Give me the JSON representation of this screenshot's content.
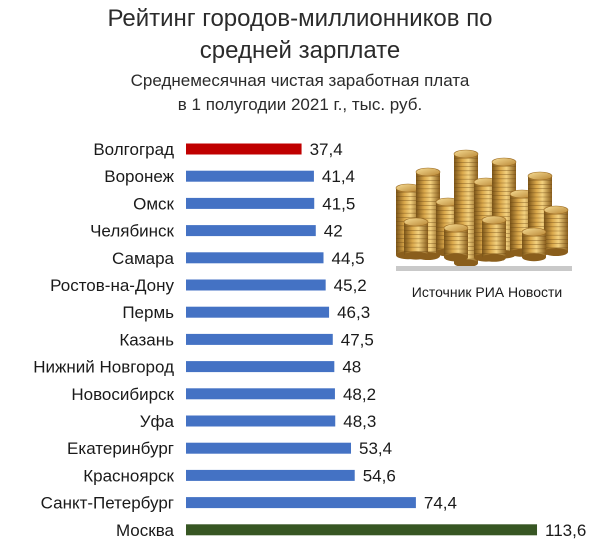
{
  "header": {
    "title_line1": "Рейтинг городов-миллионников по",
    "title_line2": "средней зарплате",
    "subtitle_line1": "Среднемесячная чистая заработная плата",
    "subtitle_line2": "в 1 полугодии 2021 г., тыс. руб."
  },
  "source": {
    "text": "Источник РИА Новости"
  },
  "colors": {
    "default_bar": "#4472c4",
    "lowest_bar": "#c00000",
    "highest_bar": "#375623"
  },
  "chart_data": {
    "type": "bar",
    "orientation": "horizontal",
    "categories": [
      "Волгоград",
      "Воронеж",
      "Омск",
      "Челябинск",
      "Самара",
      "Ростов-на-Дону",
      "Пермь",
      "Казань",
      "Нижний Новгород",
      "Новосибирск",
      "Уфа",
      "Екатеринбург",
      "Красноярск",
      "Санкт-Петербург",
      "Москва"
    ],
    "values": [
      37.4,
      41.4,
      41.5,
      42,
      44.5,
      45.2,
      46.3,
      47.5,
      48,
      48.2,
      48.3,
      53.4,
      54.6,
      74.4,
      113.6
    ],
    "value_labels": [
      "37,4",
      "41,4",
      "41,5",
      "42",
      "44,5",
      "45,2",
      "46,3",
      "47,5",
      "48",
      "48,2",
      "48,3",
      "53,4",
      "54,6",
      "74,4",
      "113,6"
    ],
    "bar_colors": [
      "#c00000",
      "#4472c4",
      "#4472c4",
      "#4472c4",
      "#4472c4",
      "#4472c4",
      "#4472c4",
      "#4472c4",
      "#4472c4",
      "#4472c4",
      "#4472c4",
      "#4472c4",
      "#4472c4",
      "#4472c4",
      "#375623"
    ],
    "title": "Рейтинг городов-миллионников по средней зарплате",
    "subtitle": "Среднемесячная чистая заработная плата в 1 полугодии 2021 г., тыс. руб.",
    "xlabel": "",
    "ylabel": "",
    "xlim": [
      0,
      113.6
    ],
    "grid": false,
    "legend": "none"
  }
}
